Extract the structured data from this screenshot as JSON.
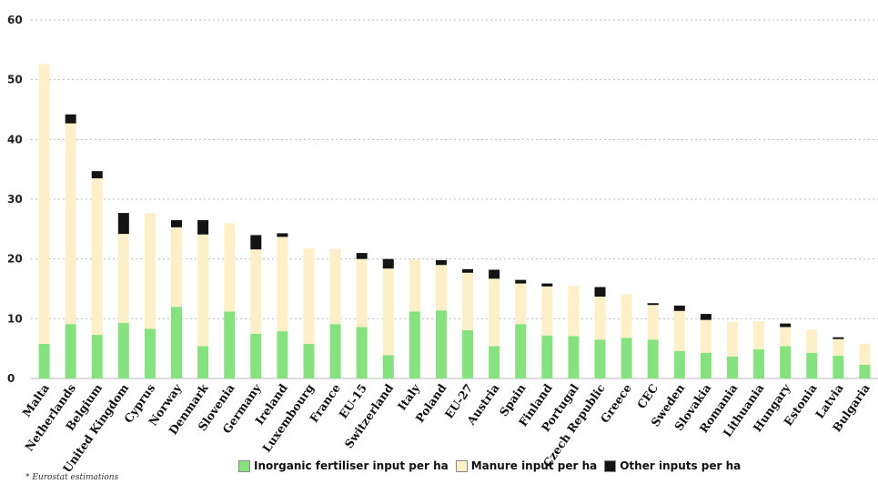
{
  "chart_data": {
    "type": "bar",
    "stacked": true,
    "categories": [
      "Malta",
      "Netherlands",
      "Belgium",
      "United Kingdom",
      "Cyprus",
      "Norway",
      "Denmark",
      "Slovenia",
      "Germany",
      "Ireland",
      "Luxembourg",
      "France",
      "EU-15",
      "Switzerland",
      "Italy",
      "Poland",
      "EU-27",
      "Austria",
      "Spain",
      "Finland",
      "Portugal",
      "Czech Republic",
      "Greece",
      "CEC",
      "Sweden",
      "Slovakia",
      "Romania",
      "Lithuania",
      "Hungary",
      "Estonia",
      "Latvia",
      "Bulgaria"
    ],
    "series": [
      {
        "name": "Inorganic fertiliser input per ha",
        "color": "#86e27e",
        "values": [
          5.8,
          9.1,
          7.3,
          9.3,
          8.3,
          12.0,
          5.4,
          11.2,
          7.5,
          7.9,
          5.8,
          9.1,
          8.6,
          3.9,
          11.2,
          11.4,
          8.1,
          5.4,
          9.1,
          7.2,
          7.1,
          6.5,
          6.8,
          6.5,
          4.6,
          4.3,
          3.7,
          4.9,
          5.4,
          4.3,
          3.8,
          2.3
        ]
      },
      {
        "name": "Manure input per ha",
        "color": "#fdf0c8",
        "values": [
          46.8,
          33.6,
          26.2,
          14.9,
          19.4,
          13.3,
          18.7,
          14.8,
          14.1,
          15.8,
          16.0,
          12.6,
          11.4,
          14.5,
          8.7,
          7.6,
          9.6,
          11.3,
          6.8,
          8.2,
          8.4,
          7.2,
          7.3,
          5.8,
          6.7,
          5.5,
          5.8,
          4.7,
          3.2,
          3.9,
          2.8,
          3.5
        ]
      },
      {
        "name": "Other inputs per ha",
        "color": "#141414",
        "values": [
          0,
          1.5,
          1.2,
          3.5,
          0,
          1.2,
          2.4,
          0,
          2.4,
          0.6,
          0,
          0,
          1.0,
          1.6,
          0,
          0.8,
          0.6,
          1.5,
          0.6,
          0.5,
          0,
          1.6,
          0,
          0.3,
          0.9,
          1.0,
          0,
          0,
          0.6,
          0,
          0.3,
          0
        ]
      }
    ],
    "ylim": [
      0,
      60
    ],
    "yticks": [
      0,
      10,
      20,
      30,
      40,
      50,
      60
    ],
    "grid": true,
    "legend_position": "bottom"
  },
  "footnote": "* Eurostat estimations"
}
